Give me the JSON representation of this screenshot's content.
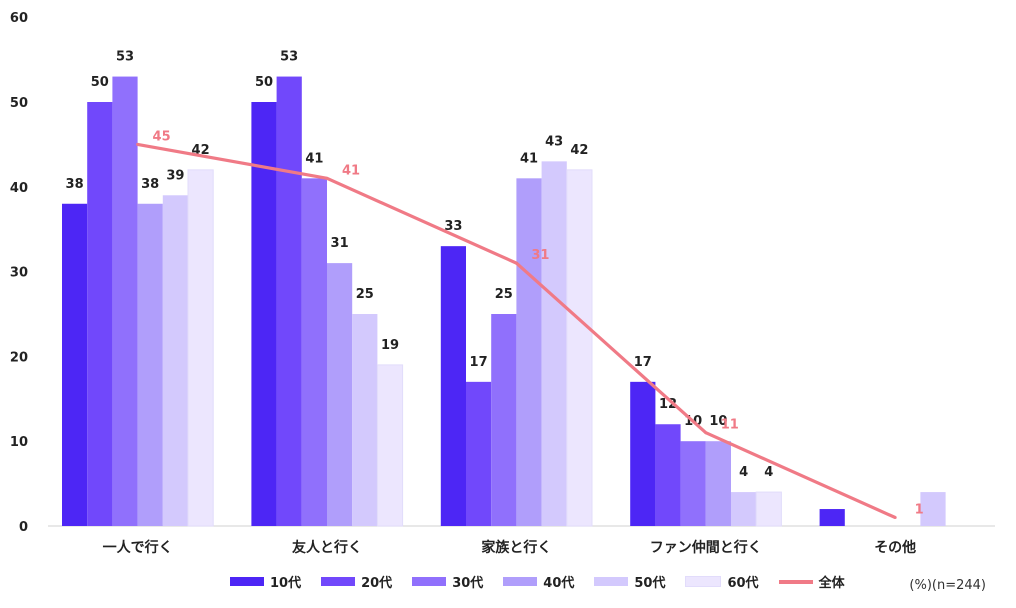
{
  "chart_data": {
    "type": "bar",
    "categories": [
      "一人で行く",
      "友人と行く",
      "家族と行く",
      "ファン仲間と行く",
      "その他"
    ],
    "series": [
      {
        "name": "10代",
        "color": "#4d26f5",
        "values": [
          38,
          50,
          33,
          17,
          2
        ]
      },
      {
        "name": "20代",
        "color": "#7148fb",
        "values": [
          50,
          53,
          17,
          12,
          null
        ]
      },
      {
        "name": "30代",
        "color": "#9070fc",
        "values": [
          53,
          41,
          25,
          10,
          null
        ]
      },
      {
        "name": "40代",
        "color": "#b09efb",
        "values": [
          38,
          31,
          41,
          10,
          null
        ]
      },
      {
        "name": "50代",
        "color": "#d3c9fd",
        "values": [
          39,
          25,
          43,
          4,
          4
        ]
      },
      {
        "name": "60代",
        "color": "#ece6fe",
        "values": [
          42,
          19,
          42,
          4,
          null
        ]
      }
    ],
    "bar_labels": [
      [
        "38",
        "50",
        "33",
        "17",
        ""
      ],
      [
        "50",
        "53",
        "17",
        "12",
        ""
      ],
      [
        "53",
        "41",
        "25",
        "10",
        ""
      ],
      [
        "38",
        "31",
        "41",
        "10",
        ""
      ],
      [
        "39",
        "25",
        "43",
        "4",
        ""
      ],
      [
        "42",
        "19",
        "42",
        "4",
        ""
      ]
    ],
    "line": {
      "name": "全体",
      "color": "#f07a86",
      "values": [
        45,
        41,
        31,
        11,
        1
      ],
      "labels": [
        "45",
        "41",
        "31",
        "11",
        "1"
      ]
    },
    "ylim": [
      0,
      60
    ],
    "yticks": [
      "0",
      "10",
      "20",
      "30",
      "40",
      "50",
      "60"
    ],
    "grid": false,
    "legend_position": "bottom",
    "note": "(%)(n=244)"
  }
}
